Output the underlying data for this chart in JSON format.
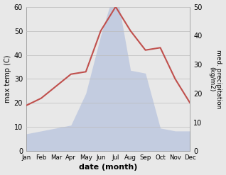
{
  "months": [
    "Jan",
    "Feb",
    "Mar",
    "Apr",
    "May",
    "Jun",
    "Jul",
    "Aug",
    "Sep",
    "Oct",
    "Nov",
    "Dec"
  ],
  "temperature": [
    19,
    22,
    27,
    32,
    33,
    50,
    60,
    50,
    42,
    43,
    30,
    20
  ],
  "precipitation": [
    6,
    7,
    8,
    9,
    20,
    40,
    57,
    28,
    27,
    8,
    7,
    7
  ],
  "temp_color": "#c0504d",
  "precip_fill_color": "#bfc9e0",
  "ylabel_left": "max temp (C)",
  "ylabel_right": "med. precipitation\n(kg/m2)",
  "xlabel": "date (month)",
  "ylim_left": [
    0,
    60
  ],
  "ylim_right": [
    0,
    50
  ],
  "bg_color": "#e8e8e8",
  "plot_bg_color": "#e8e8e8",
  "temp_linewidth": 1.5,
  "figsize": [
    3.18,
    2.47
  ],
  "dpi": 100
}
